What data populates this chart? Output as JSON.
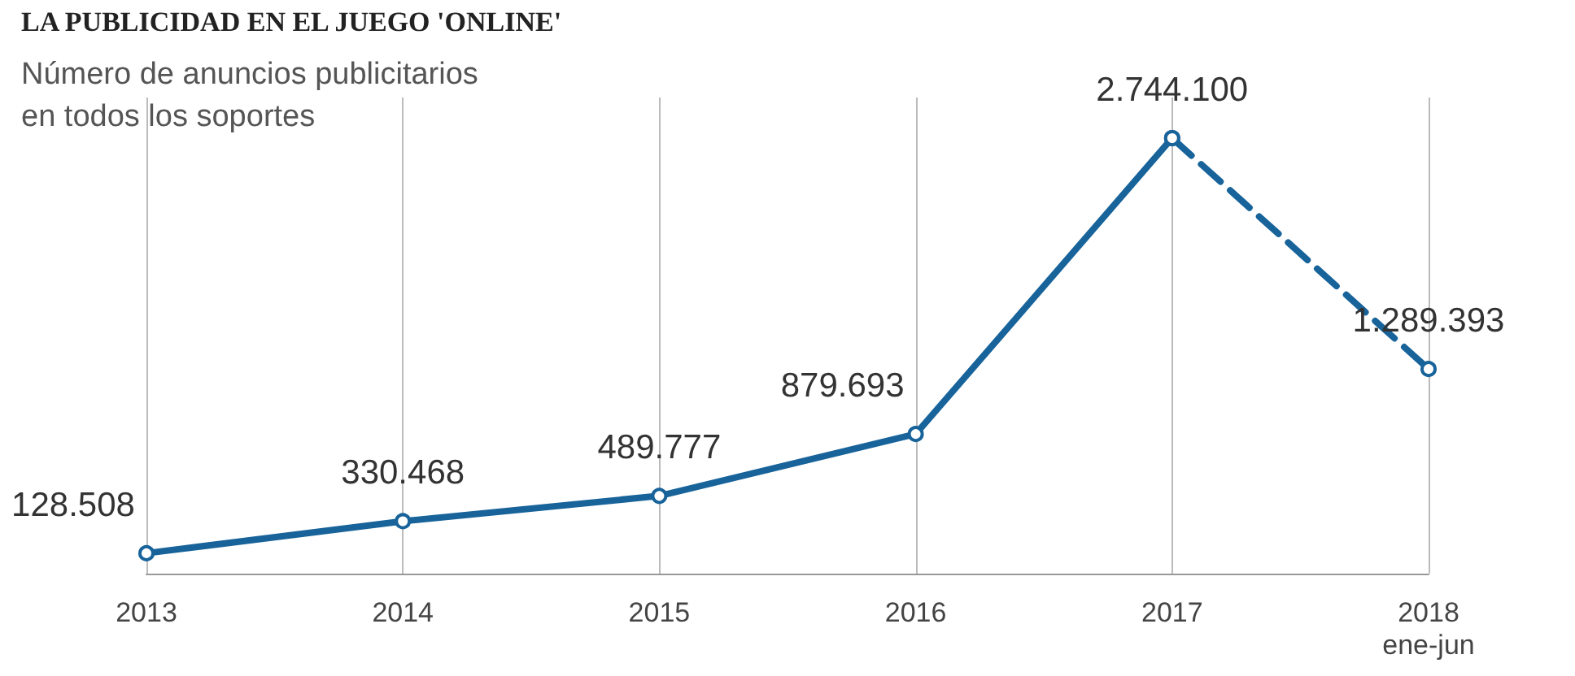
{
  "chart_data": {
    "type": "line",
    "title": "LA PUBLICIDAD EN EL JUEGO 'ONLINE'",
    "subtitle": "Número de anuncios publicitarios\nen todos los soportes",
    "categories": [
      "2013",
      "2014",
      "2015",
      "2016",
      "2017",
      "2018\nene-jun"
    ],
    "series": [
      {
        "color": "#17639a",
        "values": [
          128508,
          330468,
          489777,
          879693,
          2744100,
          null
        ],
        "value_labels": [
          "128.508",
          "330.468",
          "489.777",
          "879.693",
          null,
          null
        ]
      },
      {
        "color": "#17639a",
        "line_style": "dashed",
        "values": [
          null,
          null,
          null,
          null,
          2744100,
          1289393
        ],
        "value_labels": [
          null,
          null,
          null,
          null,
          "2.744.100",
          "1.289.393"
        ]
      }
    ],
    "marker": "circle",
    "grid": "x",
    "line_style": "solid"
  }
}
